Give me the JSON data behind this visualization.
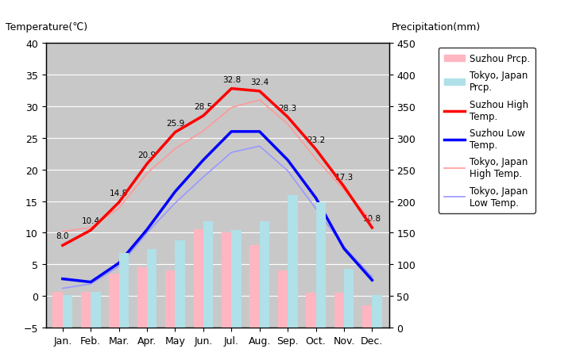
{
  "months": [
    "Jan.",
    "Feb.",
    "Mar.",
    "Apr.",
    "May",
    "Jun.",
    "Jul.",
    "Aug.",
    "Sep.",
    "Oct.",
    "Nov.",
    "Dec."
  ],
  "suzhou_high": [
    8.0,
    10.4,
    14.8,
    20.9,
    25.9,
    28.5,
    32.8,
    32.4,
    28.3,
    23.2,
    17.3,
    10.8
  ],
  "suzhou_low": [
    2.7,
    2.2,
    5.2,
    10.5,
    16.5,
    21.5,
    26.0,
    26.0,
    21.5,
    15.5,
    7.5,
    2.5
  ],
  "tokyo_high": [
    10.2,
    10.8,
    13.9,
    19.4,
    23.3,
    26.1,
    29.8,
    31.0,
    27.2,
    21.7,
    16.8,
    11.8
  ],
  "tokyo_low": [
    1.2,
    1.9,
    4.7,
    10.0,
    14.7,
    18.8,
    22.7,
    23.7,
    19.8,
    13.8,
    7.8,
    3.0
  ],
  "suzhou_prcp": [
    57,
    57,
    85,
    95,
    90,
    155,
    150,
    130,
    90,
    55,
    55,
    35
  ],
  "tokyo_prcp": [
    52,
    56,
    118,
    124,
    138,
    168,
    154,
    168,
    210,
    198,
    93,
    51
  ],
  "suzhou_high_color": "#FF0000",
  "suzhou_low_color": "#0000FF",
  "tokyo_high_color": "#FF9999",
  "tokyo_low_color": "#9999FF",
  "suzhou_prcp_color": "#FFB6C1",
  "tokyo_prcp_color": "#B0E0E8",
  "temp_ylim": [
    -5,
    40
  ],
  "prcp_ylim": [
    0,
    450
  ],
  "temp_yticks": [
    -5,
    0,
    5,
    10,
    15,
    20,
    25,
    30,
    35,
    40
  ],
  "prcp_yticks": [
    0,
    50,
    100,
    150,
    200,
    250,
    300,
    350,
    400,
    450
  ],
  "bg_color": "#C8C8C8",
  "fig_bg_color": "#FFFFFF",
  "title_left": "Temperature(℃)",
  "title_right": "Precipitation(mm)",
  "grid_color": "#FFFFFF",
  "bar_width": 0.35
}
